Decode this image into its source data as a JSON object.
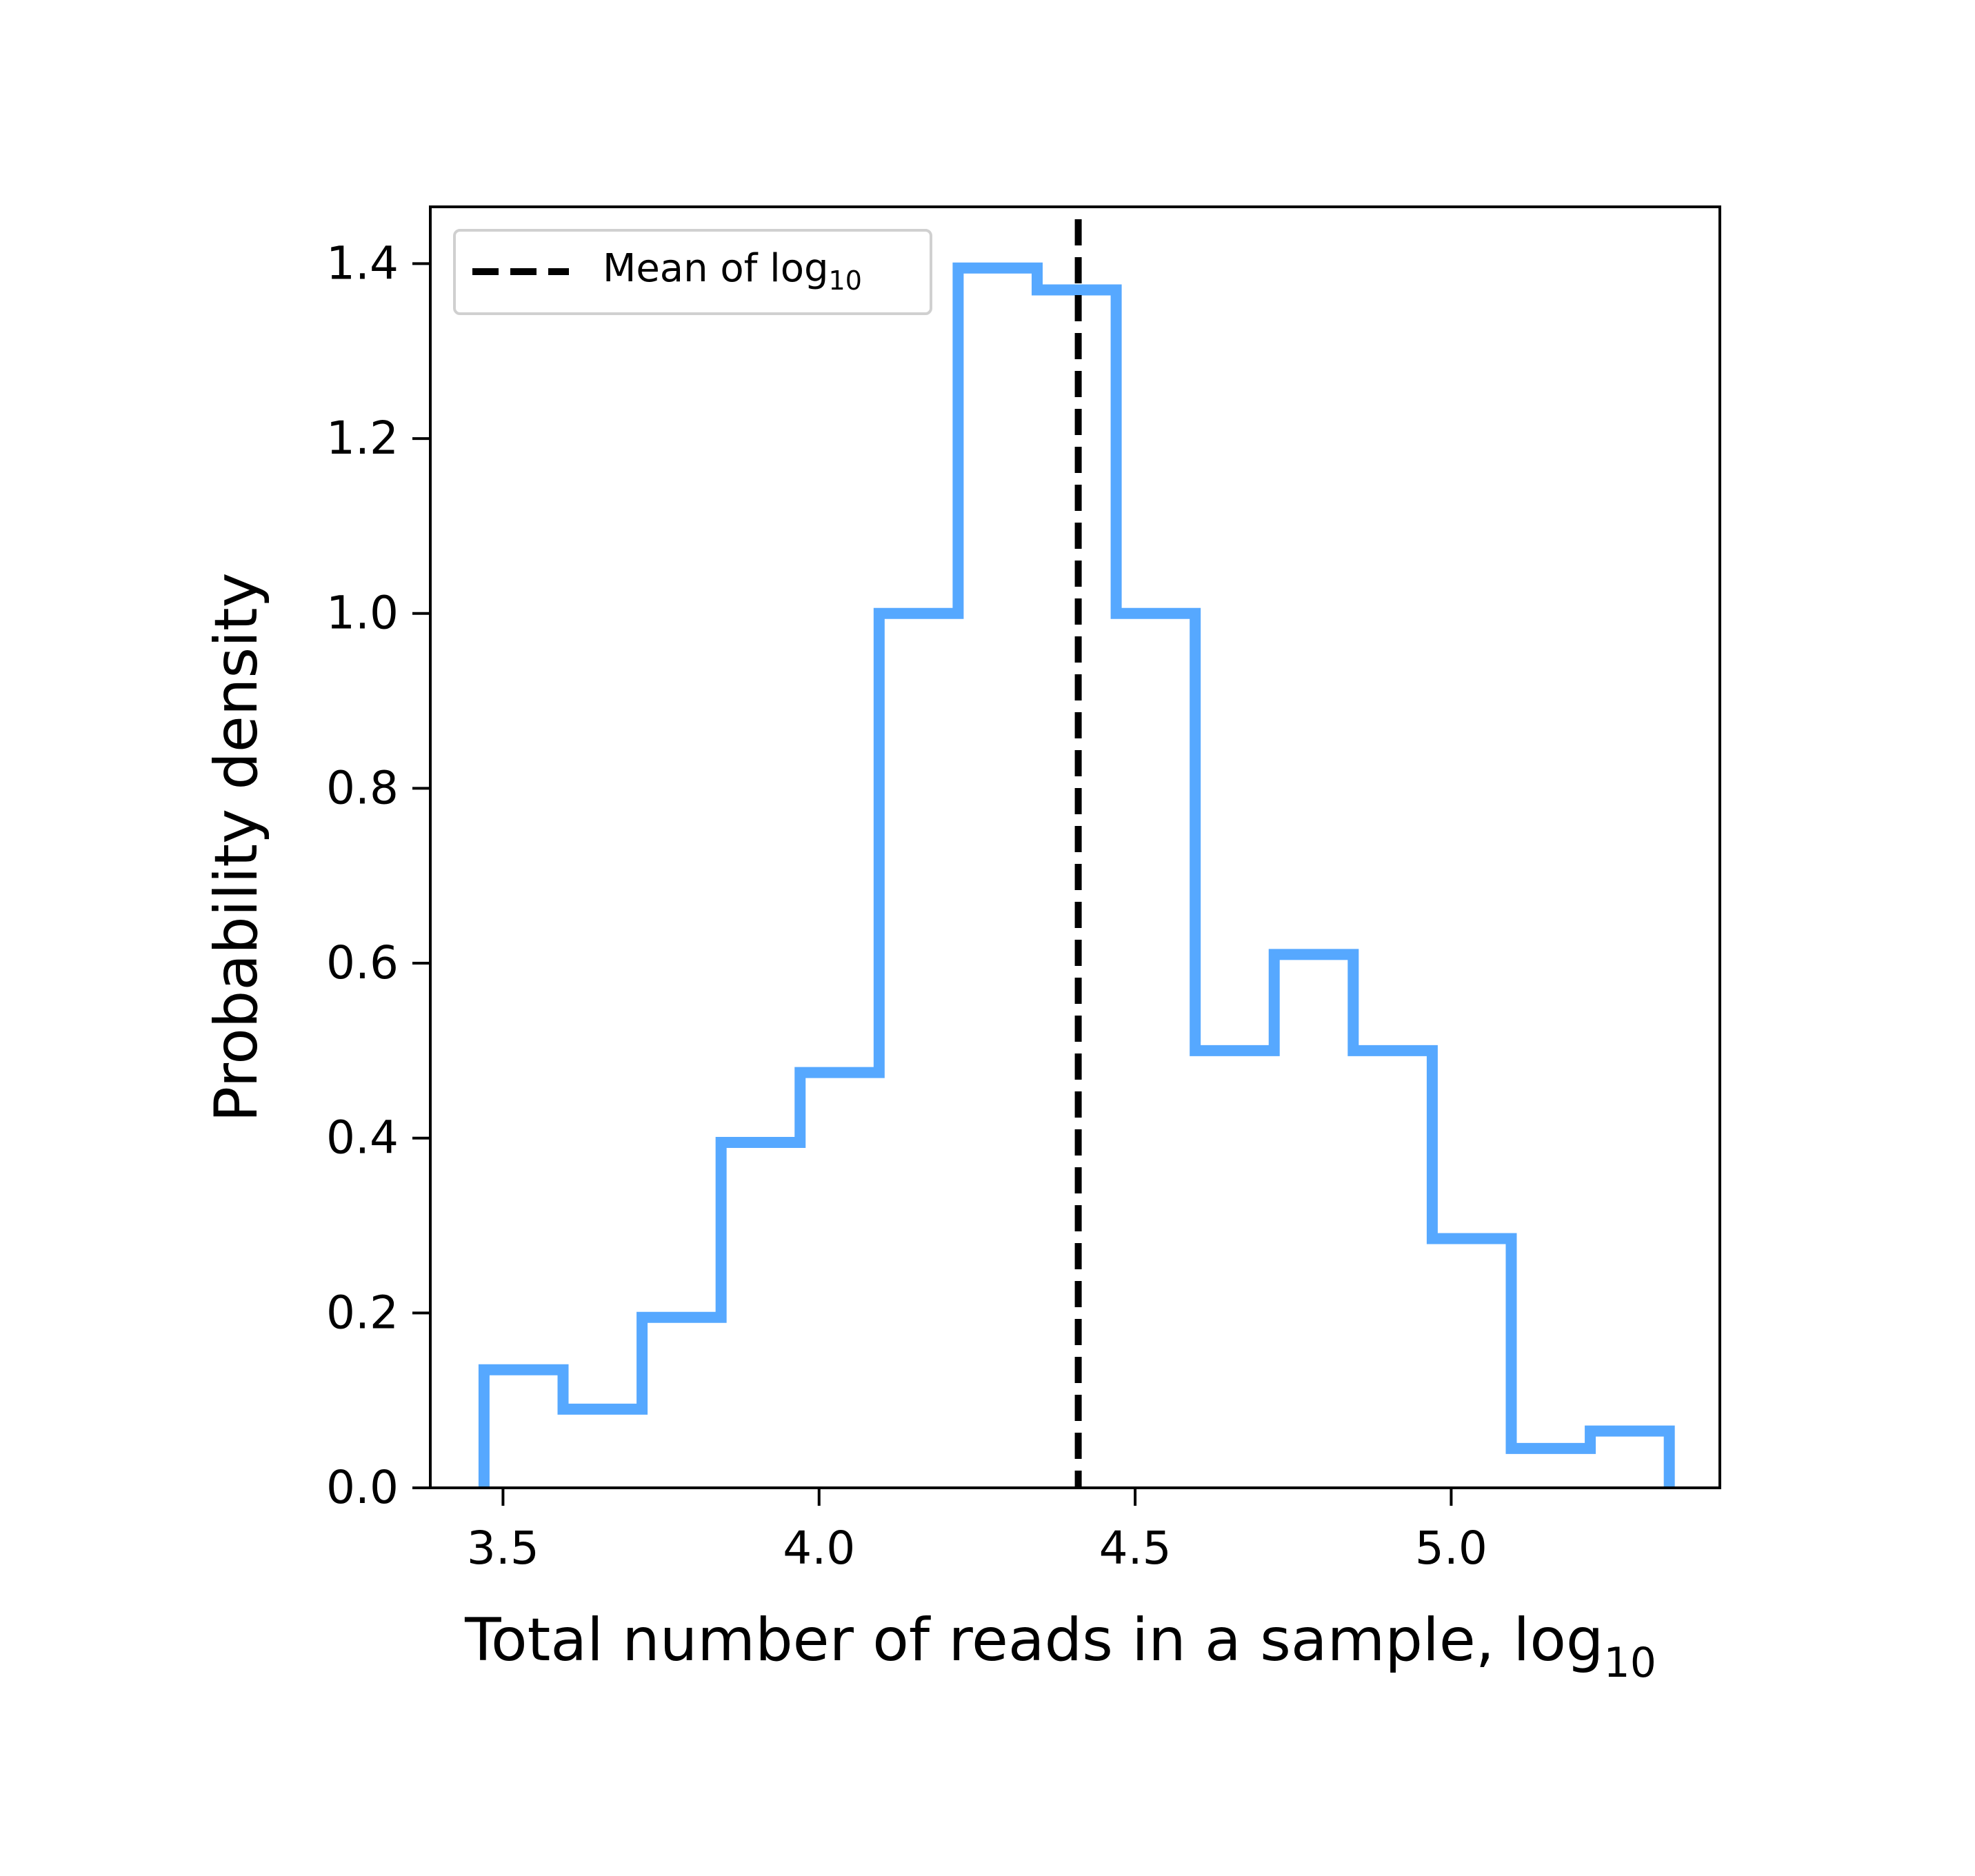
{
  "chart_data": {
    "type": "histogram",
    "title": "",
    "xlabel": "Total number of reads in a sample, log",
    "xlabel_subscript": "10",
    "ylabel": "Probability density",
    "xlim": [
      3.385,
      5.425
    ],
    "ylim": [
      0.0,
      1.465
    ],
    "xticks": [
      3.5,
      4.0,
      4.5,
      5.0
    ],
    "xtick_labels": [
      "3.5",
      "4.0",
      "4.5",
      "5.0"
    ],
    "yticks": [
      0.0,
      0.2,
      0.4,
      0.6,
      0.8,
      1.0,
      1.2,
      1.4
    ],
    "ytick_labels": [
      "0.0",
      "0.2",
      "0.4",
      "0.6",
      "0.8",
      "1.0",
      "1.2",
      "1.4"
    ],
    "grid": false,
    "histogram": {
      "histtype": "step",
      "color": "#56a8ff",
      "bin_edges": [
        3.47,
        3.595,
        3.72,
        3.845,
        3.97,
        4.095,
        4.22,
        4.345,
        4.47,
        4.595,
        4.72,
        4.845,
        4.97,
        5.095,
        5.22,
        5.345
      ],
      "density": [
        0.135,
        0.09,
        0.195,
        0.395,
        0.475,
        1.0,
        1.395,
        1.37,
        1.0,
        0.5,
        0.61,
        0.5,
        0.285,
        0.045,
        0.065
      ]
    },
    "reference_line": {
      "orientation": "vertical",
      "x": 4.41,
      "style": "dashed",
      "color": "#000000",
      "label": "Mean of log",
      "label_subscript": "10"
    },
    "legend": {
      "location": "upper left"
    }
  }
}
